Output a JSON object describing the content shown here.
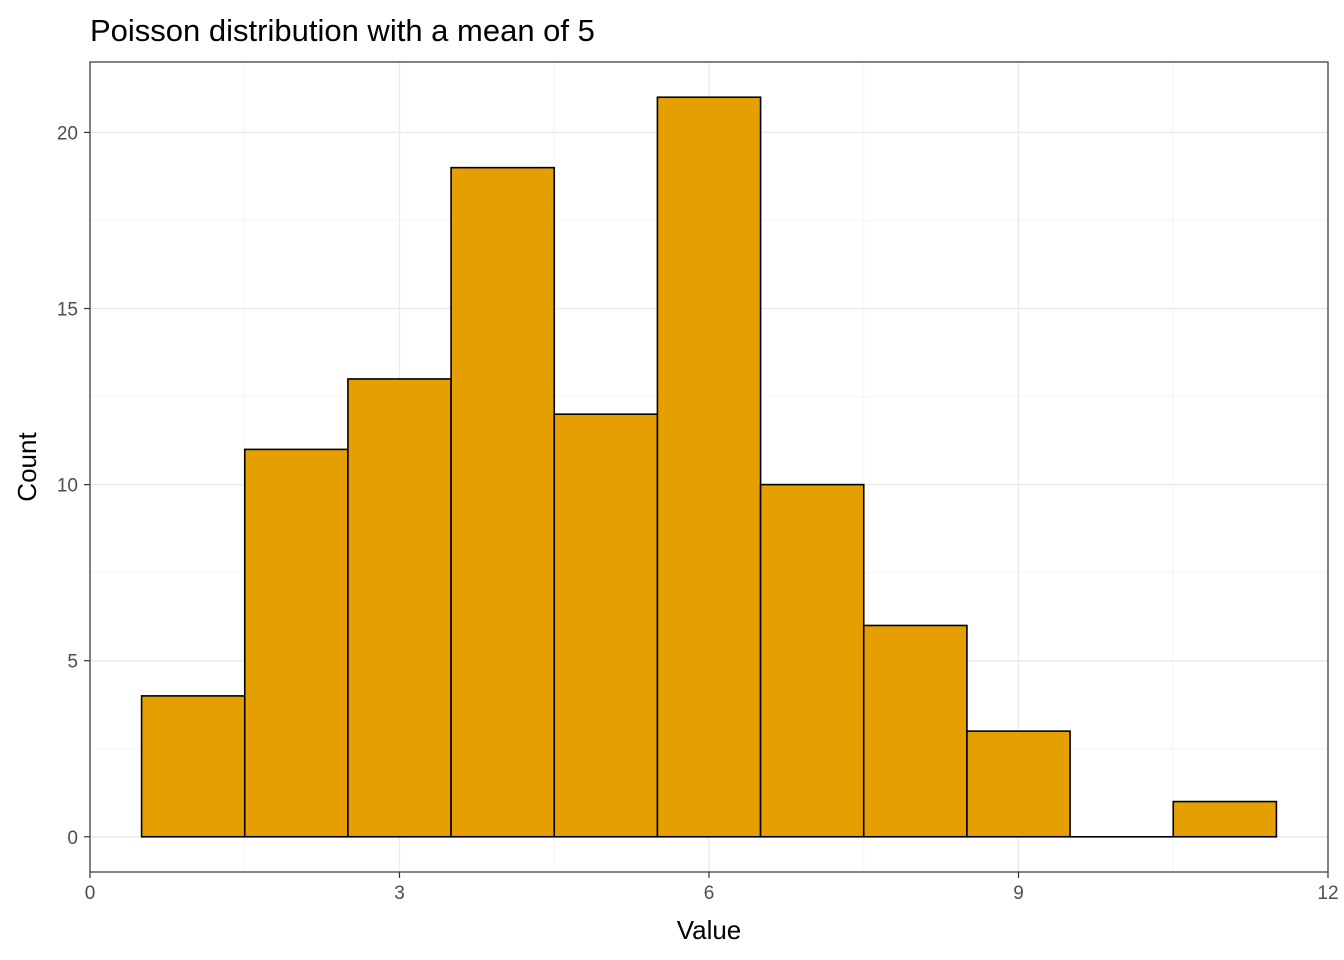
{
  "chart_data": {
    "type": "bar",
    "title": "Poisson distribution with a mean of 5",
    "xlabel": "Value",
    "ylabel": "Count",
    "histogram": true,
    "bin_width": 1,
    "x": [
      1,
      2,
      3,
      4,
      5,
      6,
      7,
      8,
      9,
      10,
      11
    ],
    "values": [
      4,
      11,
      13,
      19,
      12,
      21,
      10,
      6,
      3,
      0,
      1
    ],
    "xlim": [
      0,
      12
    ],
    "ylim": [
      -1,
      22
    ],
    "x_ticks": [
      0,
      3,
      6,
      9,
      12
    ],
    "y_ticks": [
      0,
      5,
      10,
      15,
      20
    ],
    "x_tick_labels": [
      "0",
      "3",
      "6",
      "9",
      "12"
    ],
    "y_tick_labels": [
      "0",
      "5",
      "10",
      "15",
      "20"
    ],
    "grid": true,
    "colors": {
      "bar_fill": "#E69F00",
      "bar_stroke": "#000000",
      "grid_major": "#EBEBEB",
      "grid_minor": "#F5F5F5",
      "panel_border": "#333333",
      "tick_label": "#4D4D4D"
    }
  }
}
